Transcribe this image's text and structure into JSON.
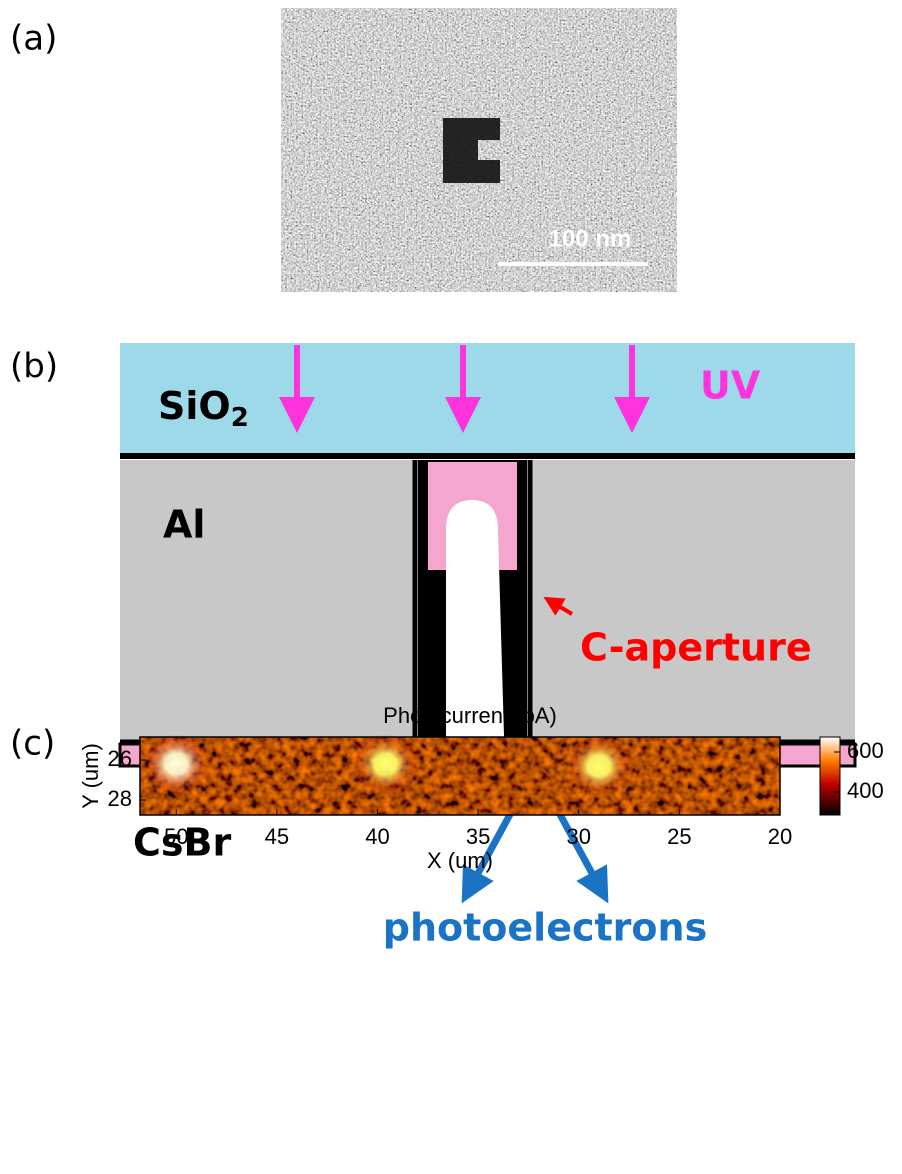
{
  "panel_labels": {
    "a": "(a)",
    "b": "(b)",
    "c": "(c)"
  },
  "panel_a": {
    "scale_bar": "100 nm"
  },
  "panel_b": {
    "sio2": {
      "text": "SiO",
      "subscript": "2"
    },
    "uv": "UV",
    "al": "Al",
    "c_aperture": "C-aperture",
    "csbr": "CsBr",
    "photoelectrons": "photoelectrons"
  },
  "panel_c": {
    "title": "Photocurrent (pA)",
    "xlabel": "X (um)",
    "ylabel": "Y (um)",
    "xlim": [
      51.8,
      20
    ],
    "xticks": [
      50,
      45,
      40,
      35,
      30,
      25,
      20
    ],
    "ylim": [
      24.85,
      28.75
    ],
    "yticks": [
      26,
      28
    ],
    "clim": [
      285,
      675
    ],
    "cticks": [
      600,
      400
    ],
    "spots": {
      "x": [
        50,
        39.6,
        29
      ],
      "y": [
        26.2,
        26.2,
        26.3
      ],
      "values": [
        660,
        620,
        620
      ]
    }
  }
}
